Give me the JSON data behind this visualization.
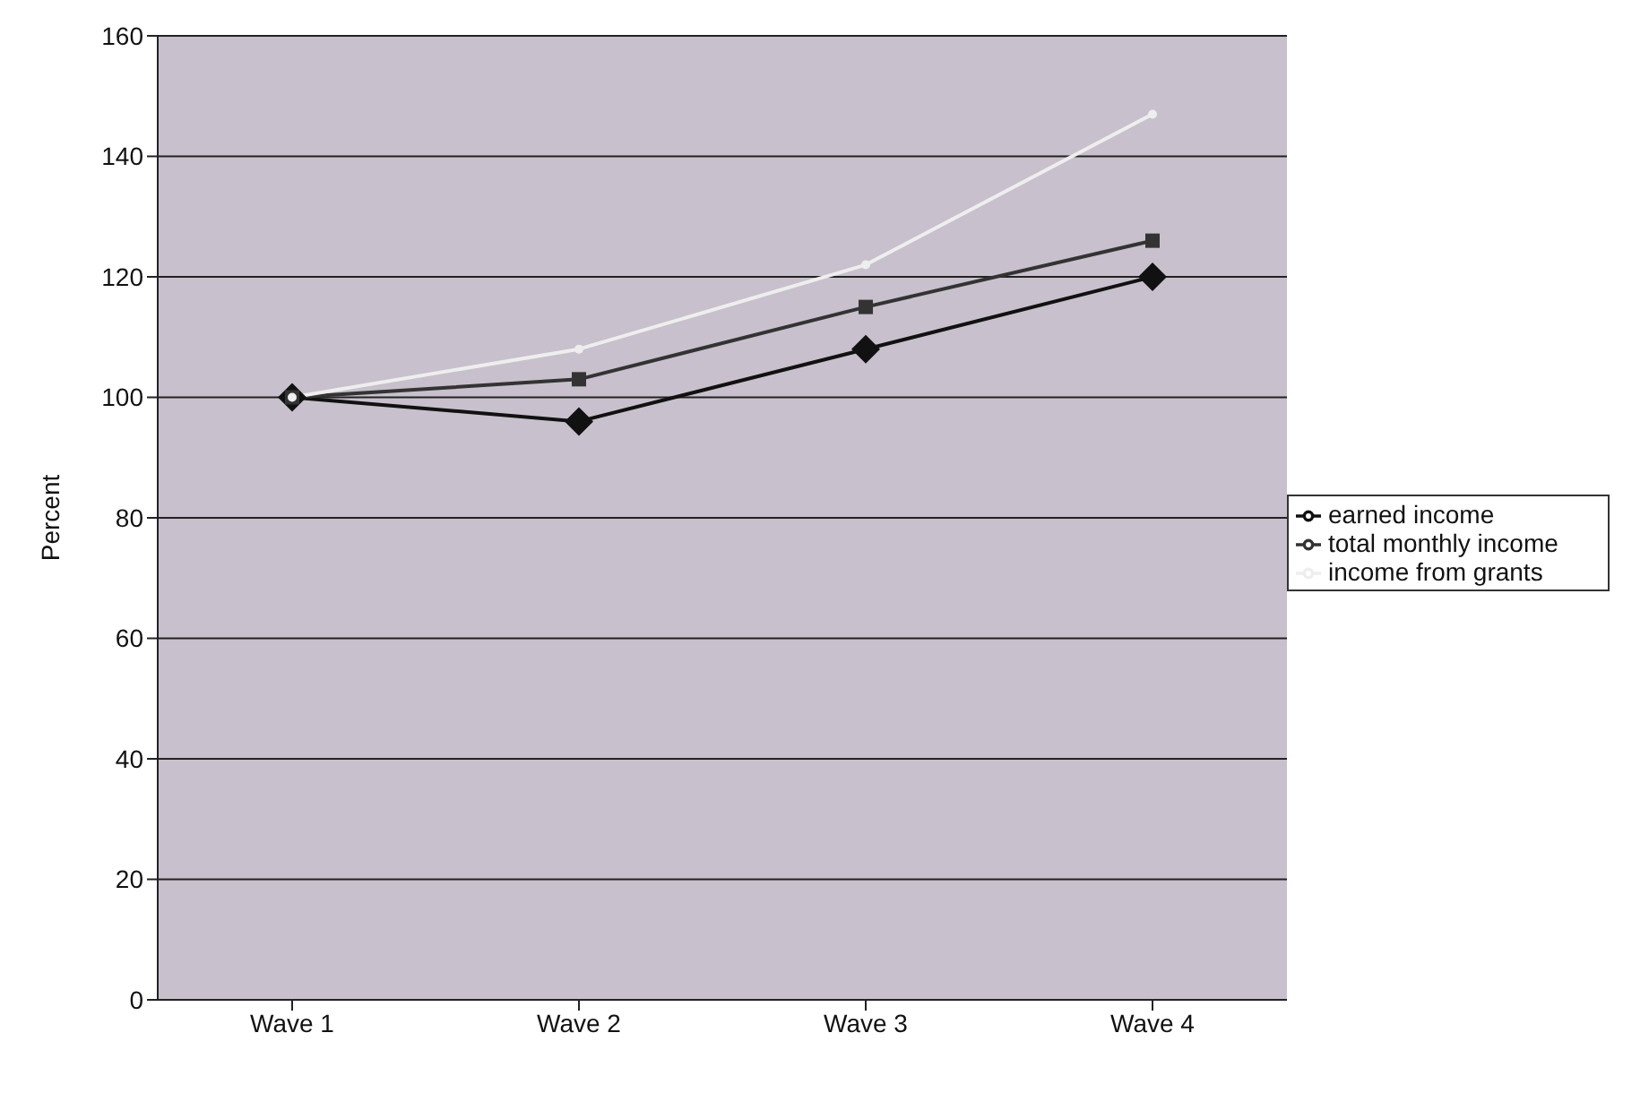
{
  "chart_data": {
    "type": "line",
    "ylabel": "Percent",
    "categories": [
      "Wave 1",
      "Wave 2",
      "Wave 3",
      "Wave 4"
    ],
    "series": [
      {
        "name": "earned income",
        "color": "#111111",
        "marker": "diamond",
        "values": [
          100,
          96,
          108,
          120
        ]
      },
      {
        "name": "total monthly income",
        "color": "#333333",
        "marker": "square",
        "values": [
          100,
          103,
          115,
          126
        ]
      },
      {
        "name": "income from grants",
        "color": "#eeeeee",
        "marker": "circle",
        "values": [
          100,
          108,
          122,
          147
        ]
      }
    ],
    "ylim": [
      0,
      160
    ],
    "yticks": [
      0,
      20,
      40,
      60,
      80,
      100,
      120,
      140,
      160
    ],
    "grid": "y",
    "legend": "right"
  }
}
